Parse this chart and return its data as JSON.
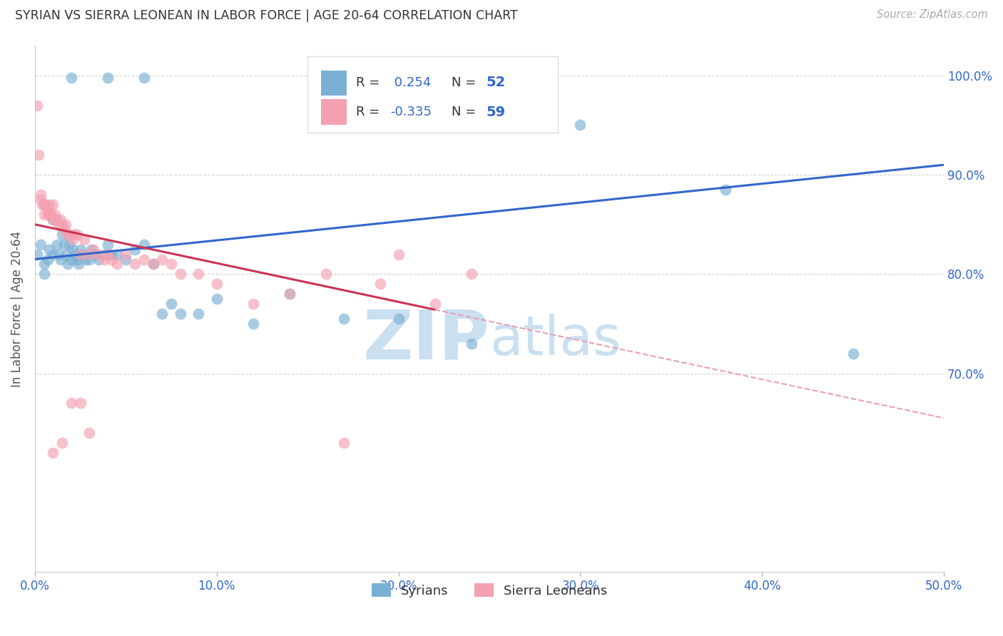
{
  "title": "SYRIAN VS SIERRA LEONEAN IN LABOR FORCE | AGE 20-64 CORRELATION CHART",
  "source": "Source: ZipAtlas.com",
  "ylabel": "In Labor Force | Age 20-64",
  "xlim": [
    0.0,
    0.5
  ],
  "ylim": [
    0.5,
    1.03
  ],
  "yticks": [
    0.7,
    0.8,
    0.9,
    1.0
  ],
  "xticks": [
    0.0,
    0.1,
    0.2,
    0.3,
    0.4,
    0.5
  ],
  "xtick_labels": [
    "0.0%",
    "10.0%",
    "20.0%",
    "30.0%",
    "40.0%",
    "50.0%"
  ],
  "ytick_labels": [
    "70.0%",
    "80.0%",
    "90.0%",
    "100.0%"
  ],
  "legend_blue_r": "0.254",
  "legend_blue_n": "52",
  "legend_pink_r": "-0.335",
  "legend_pink_n": "59",
  "blue_color": "#7ab0d4",
  "pink_color": "#f4a0b0",
  "trend_blue_color": "#3366cc",
  "trend_pink_color": "#cc3355",
  "trend_pink_dashed_color": "#e8a0b0",
  "watermark_color": "#c5ddf0",
  "blue_scatter_x": [
    0.02,
    0.04,
    0.06,
    0.001,
    0.003,
    0.005,
    0.005,
    0.007,
    0.008,
    0.01,
    0.01,
    0.012,
    0.013,
    0.014,
    0.015,
    0.016,
    0.017,
    0.018,
    0.019,
    0.02,
    0.021,
    0.022,
    0.023,
    0.024,
    0.025,
    0.026,
    0.028,
    0.03,
    0.031,
    0.033,
    0.035,
    0.038,
    0.04,
    0.042,
    0.045,
    0.05,
    0.055,
    0.06,
    0.065,
    0.07,
    0.075,
    0.08,
    0.09,
    0.1,
    0.12,
    0.14,
    0.17,
    0.2,
    0.24,
    0.3,
    0.38,
    0.45
  ],
  "blue_scatter_y": [
    0.998,
    0.998,
    0.998,
    0.82,
    0.83,
    0.81,
    0.8,
    0.815,
    0.825,
    0.855,
    0.82,
    0.83,
    0.82,
    0.815,
    0.84,
    0.83,
    0.82,
    0.81,
    0.83,
    0.815,
    0.825,
    0.82,
    0.815,
    0.81,
    0.825,
    0.82,
    0.815,
    0.815,
    0.825,
    0.82,
    0.815,
    0.82,
    0.83,
    0.82,
    0.82,
    0.815,
    0.825,
    0.83,
    0.81,
    0.76,
    0.77,
    0.76,
    0.76,
    0.775,
    0.75,
    0.78,
    0.755,
    0.755,
    0.73,
    0.95,
    0.885,
    0.72
  ],
  "pink_scatter_x": [
    0.001,
    0.002,
    0.003,
    0.003,
    0.004,
    0.005,
    0.005,
    0.006,
    0.007,
    0.007,
    0.008,
    0.008,
    0.009,
    0.01,
    0.01,
    0.011,
    0.012,
    0.013,
    0.014,
    0.015,
    0.016,
    0.017,
    0.018,
    0.019,
    0.02,
    0.021,
    0.022,
    0.023,
    0.025,
    0.027,
    0.03,
    0.032,
    0.035,
    0.038,
    0.04,
    0.042,
    0.045,
    0.05,
    0.055,
    0.06,
    0.065,
    0.07,
    0.075,
    0.08,
    0.09,
    0.1,
    0.12,
    0.14,
    0.16,
    0.17,
    0.19,
    0.2,
    0.22,
    0.24,
    0.01,
    0.015,
    0.02,
    0.025,
    0.03
  ],
  "pink_scatter_y": [
    0.97,
    0.92,
    0.88,
    0.875,
    0.87,
    0.87,
    0.86,
    0.87,
    0.865,
    0.86,
    0.87,
    0.86,
    0.86,
    0.87,
    0.855,
    0.86,
    0.855,
    0.85,
    0.855,
    0.85,
    0.845,
    0.85,
    0.84,
    0.84,
    0.84,
    0.835,
    0.84,
    0.84,
    0.82,
    0.835,
    0.82,
    0.825,
    0.82,
    0.815,
    0.82,
    0.815,
    0.81,
    0.82,
    0.81,
    0.815,
    0.81,
    0.815,
    0.81,
    0.8,
    0.8,
    0.79,
    0.77,
    0.78,
    0.8,
    0.63,
    0.79,
    0.82,
    0.77,
    0.8,
    0.62,
    0.63,
    0.67,
    0.67,
    0.64
  ]
}
